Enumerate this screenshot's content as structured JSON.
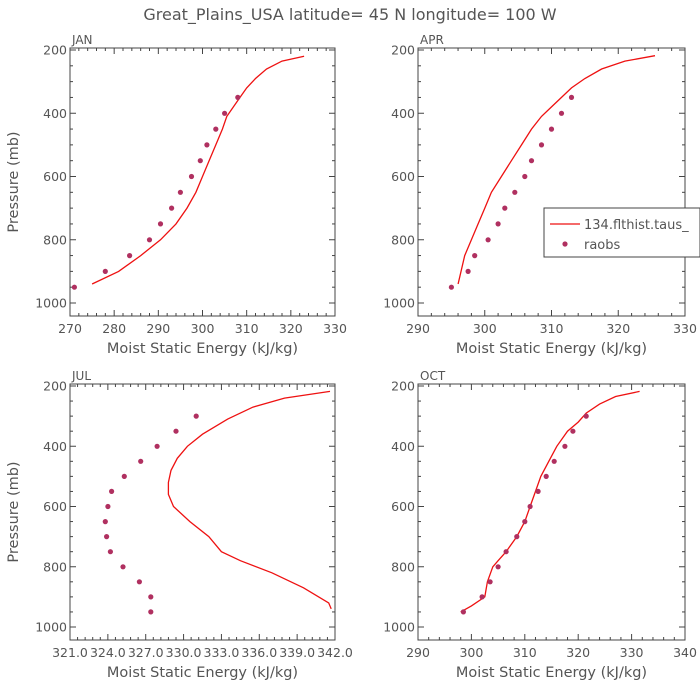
{
  "page_title": "Great_Plains_USA   latitude= 45 N longitude= 100 W",
  "colors": {
    "model": "#ee1111",
    "obs": "#b03060",
    "axis": "#444444",
    "text": "#555555"
  },
  "legend": {
    "model_label": "134.flthist.taus_",
    "obs_label": "raobs"
  },
  "chart_data": [
    {
      "type": "line",
      "panel_label": "JAN",
      "xlabel": "Moist Static Energy (kJ/kg)",
      "ylabel": "Pressure (mb)",
      "xlim": [
        270,
        330
      ],
      "xticks": [
        270,
        280,
        290,
        300,
        310,
        320,
        330
      ],
      "ylim": [
        1000,
        200
      ],
      "yticks": [
        200,
        400,
        600,
        800,
        1000
      ],
      "series": [
        {
          "kind": "line",
          "x": [
            323,
            318,
            314.5,
            312,
            310,
            308.5,
            307,
            305.5,
            304.5,
            303,
            301.5,
            300,
            298.5,
            296.5,
            294,
            290.5,
            286,
            281,
            275
          ],
          "y": [
            220,
            235,
            260,
            290,
            320,
            350,
            380,
            410,
            450,
            500,
            550,
            600,
            650,
            700,
            750,
            800,
            850,
            900,
            940
          ]
        },
        {
          "kind": "scatter",
          "x": [
            308,
            305,
            303,
            301,
            299.5,
            297.5,
            295,
            293,
            290.5,
            288,
            283.5,
            278,
            271
          ],
          "y": [
            350,
            400,
            450,
            500,
            550,
            600,
            650,
            700,
            750,
            800,
            850,
            900,
            950
          ]
        }
      ]
    },
    {
      "type": "line",
      "panel_label": "APR",
      "xlabel": "Moist Static Energy (kJ/kg)",
      "ylabel": "",
      "xlim": [
        290,
        330
      ],
      "xticks": [
        290,
        300,
        310,
        320,
        330
      ],
      "ylim": [
        1000,
        200
      ],
      "yticks": [
        200,
        400,
        600,
        800,
        1000
      ],
      "show_legend": true,
      "series": [
        {
          "kind": "line",
          "x": [
            325.5,
            321,
            317.5,
            315,
            313,
            311.5,
            310,
            308.5,
            307,
            305.5,
            304,
            302.5,
            301,
            300,
            299,
            298,
            297,
            296
          ],
          "y": [
            218,
            235,
            260,
            290,
            320,
            350,
            380,
            410,
            450,
            500,
            550,
            600,
            650,
            700,
            750,
            800,
            850,
            940
          ]
        },
        {
          "kind": "scatter",
          "x": [
            313,
            311.5,
            310,
            308.5,
            307,
            306,
            304.5,
            303,
            302,
            300.5,
            298.5,
            297.5,
            295
          ],
          "y": [
            350,
            400,
            450,
            500,
            550,
            600,
            650,
            700,
            750,
            800,
            850,
            900,
            950
          ]
        }
      ]
    },
    {
      "type": "line",
      "panel_label": "JUL",
      "xlabel": "Moist Static Energy (kJ/kg)",
      "ylabel": "Pressure (mb)",
      "xlim": [
        321.0,
        342.0
      ],
      "xticks": [
        321.0,
        324.0,
        327.0,
        330.0,
        333.0,
        336.0,
        339.0,
        342.0
      ],
      "xtick_labels": [
        "321.0",
        "324.0",
        "327.0",
        "330.0",
        "333.0",
        "336.0",
        "339.0",
        "342.0"
      ],
      "ylim": [
        1000,
        200
      ],
      "yticks": [
        200,
        400,
        600,
        800,
        1000
      ],
      "series": [
        {
          "kind": "line",
          "x": [
            341.6,
            338,
            335.5,
            333.5,
            331.5,
            330.3,
            329.5,
            329,
            328.8,
            328.8,
            329.2,
            330.5,
            332,
            333,
            334.5,
            337,
            339.5,
            341.5,
            341.7
          ],
          "y": [
            218,
            240,
            270,
            310,
            360,
            400,
            440,
            480,
            520,
            560,
            600,
            650,
            700,
            750,
            780,
            820,
            870,
            920,
            940
          ]
        },
        {
          "kind": "scatter",
          "x": [
            331.0,
            329.4,
            327.9,
            326.6,
            325.3,
            324.3,
            324.0,
            323.8,
            323.9,
            324.2,
            325.2,
            326.5,
            327.4,
            327.4
          ],
          "y": [
            300,
            350,
            400,
            450,
            500,
            550,
            600,
            650,
            700,
            750,
            800,
            850,
            900,
            950
          ]
        }
      ]
    },
    {
      "type": "line",
      "panel_label": "OCT",
      "xlabel": "Moist Static Energy (kJ/kg)",
      "ylabel": "",
      "xlim": [
        290,
        340
      ],
      "xticks": [
        290,
        300,
        310,
        320,
        330,
        340
      ],
      "ylim": [
        1000,
        200
      ],
      "yticks": [
        200,
        400,
        600,
        800,
        1000
      ],
      "series": [
        {
          "kind": "line",
          "x": [
            331.5,
            327,
            324,
            321.5,
            320,
            318,
            316,
            314.5,
            313,
            312,
            311,
            310,
            308.5,
            306.5,
            305,
            304,
            303,
            302.5,
            300,
            298
          ],
          "y": [
            218,
            235,
            260,
            290,
            320,
            350,
            400,
            450,
            500,
            550,
            600,
            650,
            700,
            750,
            780,
            800,
            850,
            900,
            930,
            950
          ]
        },
        {
          "kind": "scatter",
          "x": [
            321.5,
            319,
            317.5,
            315.5,
            314,
            312.5,
            311,
            310,
            308.5,
            306.5,
            305,
            303.5,
            302,
            298.5
          ],
          "y": [
            300,
            350,
            400,
            450,
            500,
            550,
            600,
            650,
            700,
            750,
            800,
            850,
            900,
            950
          ]
        }
      ]
    }
  ]
}
